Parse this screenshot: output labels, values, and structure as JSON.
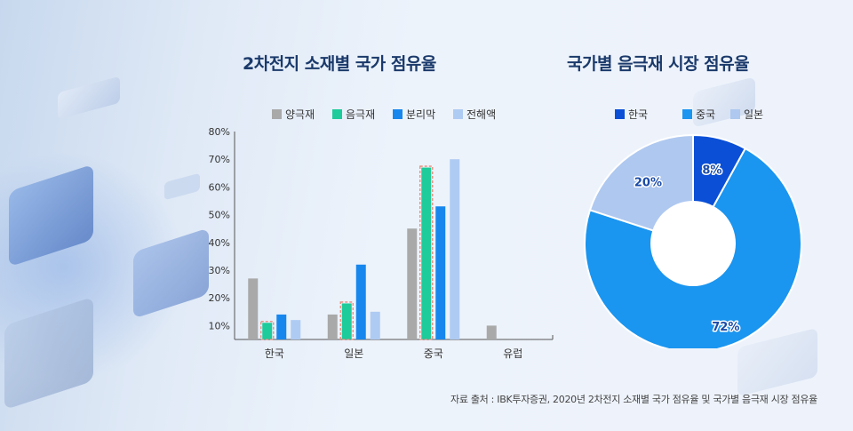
{
  "bar_title": "2차전지 소재별 국가 점유율",
  "donut_title": "국가별 음극재 시장 점유율",
  "source_text": "자료 출처 : IBK투자증권, 2020년 2차전지 소재별 국가 점유율 및 국가별 음극재 시장 점유율",
  "colors": {
    "anode_material": "#a9a9a9",
    "cathode_material": "#1ecb9b",
    "separator": "#1787ee",
    "electrolyte": "#aecbf3",
    "korea": "#0a4fd6",
    "china": "#1a95f0",
    "japan": "#aec8f0",
    "highlight_outline": "#e58a7a"
  },
  "chart_data": [
    {
      "type": "bar",
      "title": "2차전지 소재별 국가 점유율",
      "categories": [
        "한국",
        "일본",
        "중국",
        "유럽"
      ],
      "series": [
        {
          "name": "양극재",
          "values": [
            27,
            14,
            45,
            10
          ]
        },
        {
          "name": "음극재",
          "values": [
            11,
            18,
            67,
            0
          ]
        },
        {
          "name": "분리막",
          "values": [
            14,
            32,
            53,
            0
          ]
        },
        {
          "name": "전해액",
          "values": [
            12,
            15,
            70,
            0
          ]
        }
      ],
      "highlight_series": "음극재",
      "yticks": [
        "10%",
        "20%",
        "30%",
        "40%",
        "50%",
        "60%",
        "70%",
        "80%"
      ],
      "ylim": [
        5,
        80
      ],
      "xlabel": "",
      "ylabel": "",
      "legend": "top"
    },
    {
      "type": "pie",
      "title": "국가별 음극재 시장 점유율",
      "labels": [
        "한국",
        "중국",
        "일본"
      ],
      "values": [
        8,
        72,
        20
      ],
      "value_labels": [
        "8%",
        "72%",
        "20%"
      ],
      "donut": true,
      "legend": "top"
    }
  ]
}
